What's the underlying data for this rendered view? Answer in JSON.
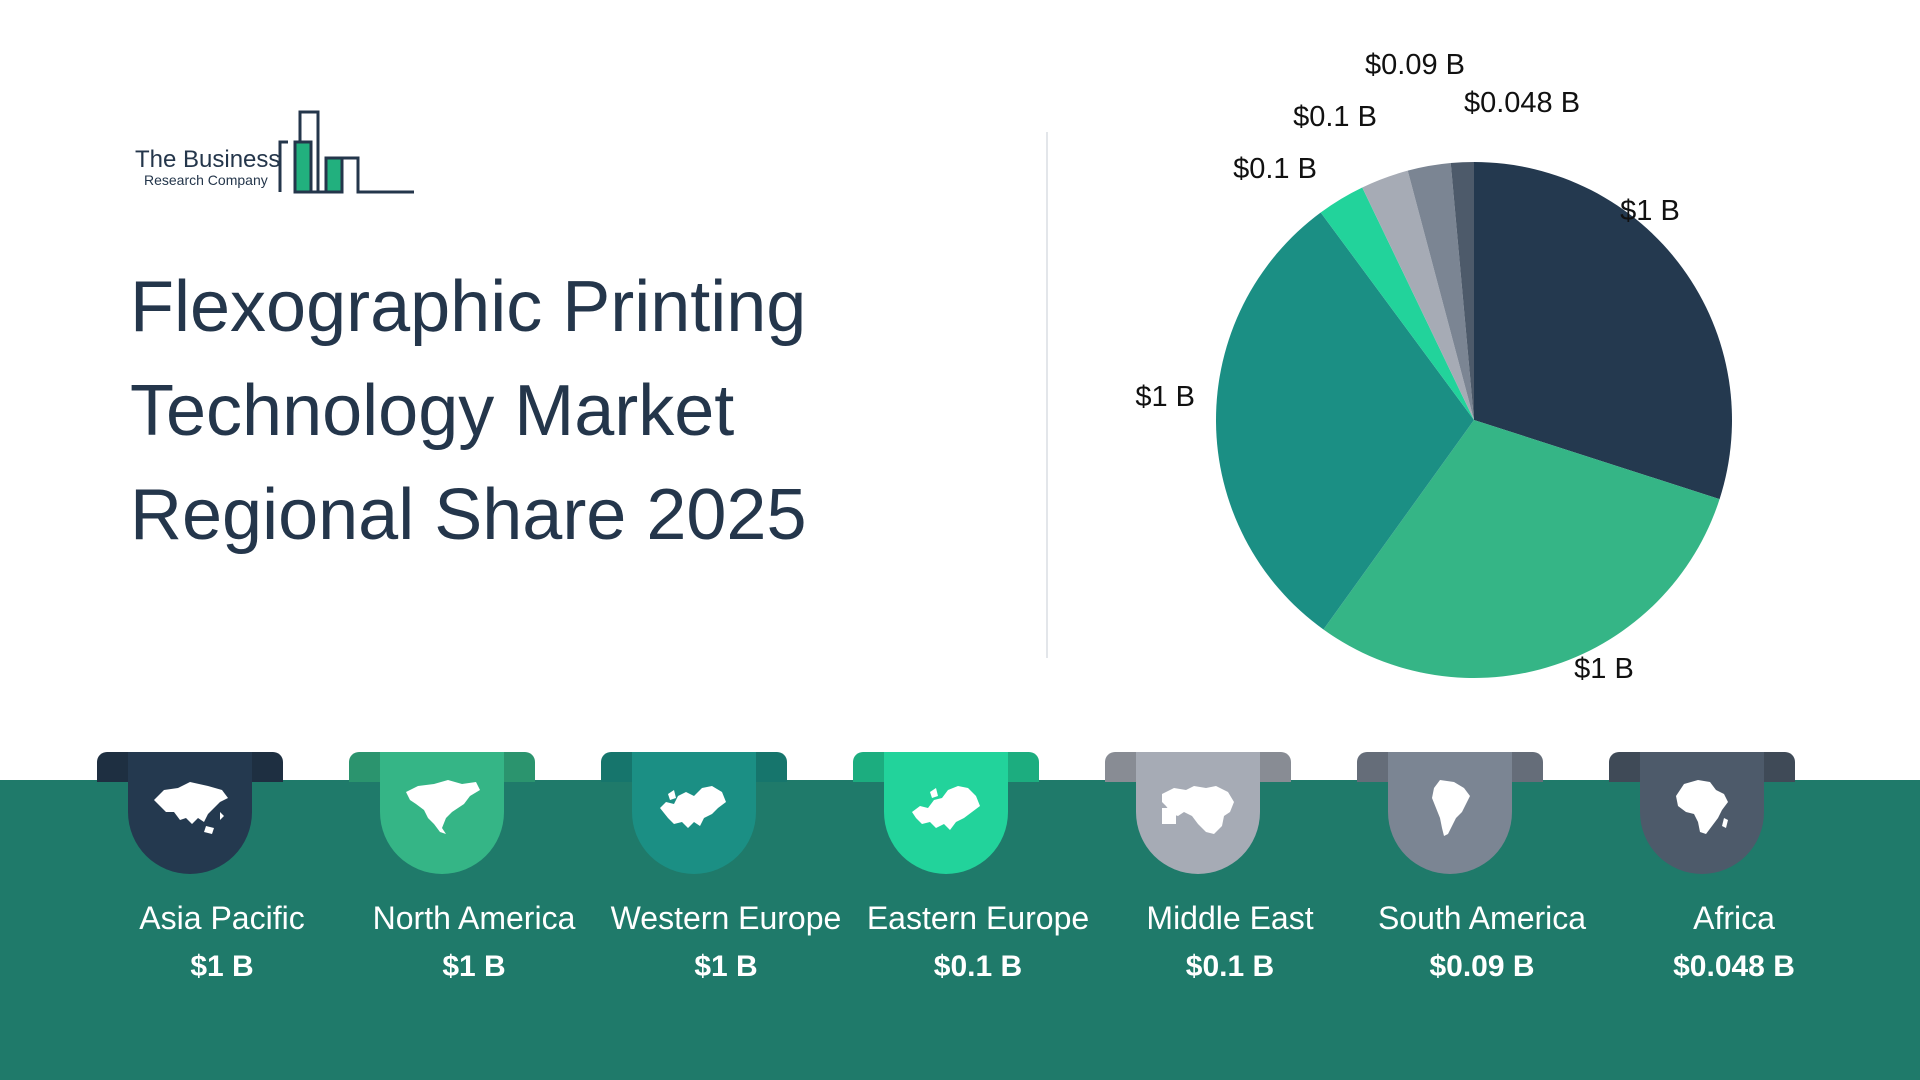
{
  "logo": {
    "line1": "The Business",
    "line2": "Research Company"
  },
  "title": {
    "line1": "Flexographic Printing",
    "line2": "Technology Market",
    "line3": "Regional Share 2025"
  },
  "colors": {
    "asia_pacific": "#24394f",
    "north_america": "#35b586",
    "western_europe": "#1b8f84",
    "eastern_europe": "#22d39b",
    "middle_east": "#a6abb5",
    "south_america": "#7b8593",
    "africa": "#4d5a6a",
    "band": "#1f7a6a"
  },
  "chart_data": {
    "type": "pie",
    "slices": [
      {
        "name": "Asia Pacific",
        "value": 1,
        "label": "$1 B",
        "color": "#24394f"
      },
      {
        "name": "North America",
        "value": 1,
        "label": "$1 B",
        "color": "#35b586"
      },
      {
        "name": "Western Europe",
        "value": 1,
        "label": "$1 B",
        "color": "#1b8f84"
      },
      {
        "name": "Eastern Europe",
        "value": 0.1,
        "label": "$0.1 B",
        "color": "#22d39b"
      },
      {
        "name": "Middle East",
        "value": 0.1,
        "label": "$0.1 B",
        "color": "#a6abb5"
      },
      {
        "name": "South America",
        "value": 0.09,
        "label": "$0.09 B",
        "color": "#7b8593"
      },
      {
        "name": "Africa",
        "value": 0.048,
        "label": "$0.048 B",
        "color": "#4d5a6a"
      }
    ]
  },
  "regions": [
    {
      "name": "Asia Pacific",
      "value": "$1 B",
      "icon": "asia-map-icon"
    },
    {
      "name": "North America",
      "value": "$1 B",
      "icon": "north-america-map-icon"
    },
    {
      "name": "Western Europe",
      "value": "$1 B",
      "icon": "western-europe-map-icon"
    },
    {
      "name": "Eastern Europe",
      "value": "$0.1 B",
      "icon": "eastern-europe-map-icon"
    },
    {
      "name": "Middle East",
      "value": "$0.1 B",
      "icon": "middle-east-map-icon"
    },
    {
      "name": "South America",
      "value": "$0.09 B",
      "icon": "south-america-map-icon"
    },
    {
      "name": "Africa",
      "value": "$0.048 B",
      "icon": "africa-map-icon"
    }
  ]
}
